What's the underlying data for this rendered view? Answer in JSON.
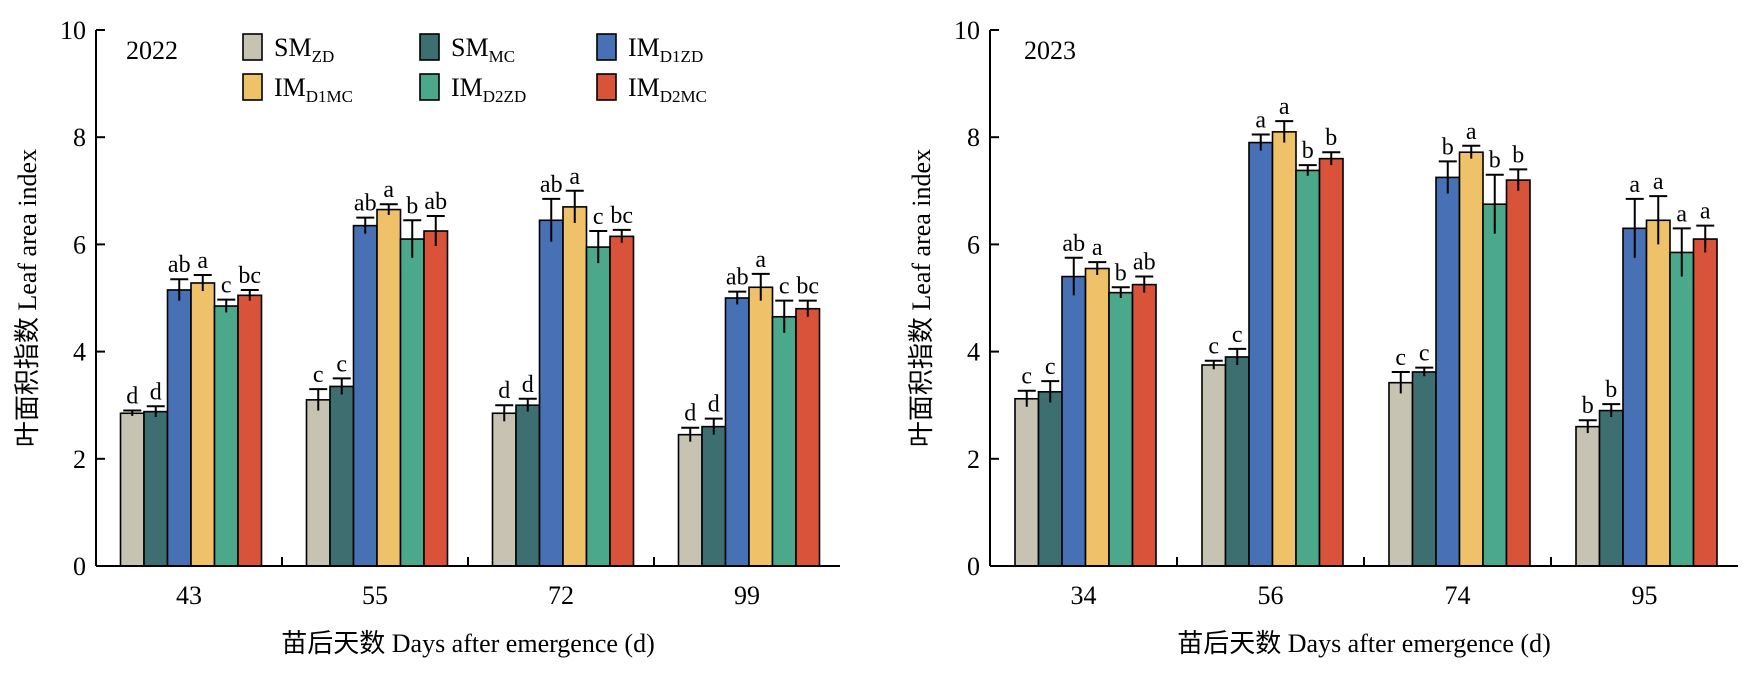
{
  "colors": {
    "SM_ZD": "#c6c3b2",
    "SM_MC": "#3d6f70",
    "IM_D1ZD": "#4870b4",
    "IM_D1MC": "#efc168",
    "IM_D2ZD": "#4ba88b",
    "IM_D2MC": "#d9523a"
  },
  "chart_data": [
    {
      "type": "bar",
      "panel_label": "2022",
      "xlabel": "苗后天数 Days after emergence (d)",
      "ylabel": "叶面积指数 Leaf area index",
      "ylim": [
        0,
        10
      ],
      "yticks": [
        "0",
        "2",
        "4",
        "6",
        "8",
        "10"
      ],
      "categories": [
        "43",
        "55",
        "72",
        "99"
      ],
      "legend": true,
      "series": [
        {
          "key": "SM_ZD",
          "name_base": "SM",
          "name_sub": "ZD",
          "values": [
            2.85,
            3.1,
            2.85,
            2.45
          ],
          "errors": [
            0.05,
            0.2,
            0.15,
            0.13
          ],
          "letters": [
            "d",
            "c",
            "d",
            "d"
          ]
        },
        {
          "key": "SM_MC",
          "name_base": "SM",
          "name_sub": "MC",
          "values": [
            2.88,
            3.35,
            3.0,
            2.6
          ],
          "errors": [
            0.1,
            0.15,
            0.12,
            0.15
          ],
          "letters": [
            "d",
            "c",
            "d",
            "d"
          ]
        },
        {
          "key": "IM_D1ZD",
          "name_base": "IM",
          "name_sub": "D1ZD",
          "values": [
            5.15,
            6.35,
            6.45,
            5.0
          ],
          "errors": [
            0.2,
            0.15,
            0.4,
            0.12
          ],
          "letters": [
            "ab",
            "ab",
            "ab",
            "ab"
          ]
        },
        {
          "key": "IM_D1MC",
          "name_base": "IM",
          "name_sub": "D1MC",
          "values": [
            5.28,
            6.65,
            6.7,
            5.2
          ],
          "errors": [
            0.15,
            0.1,
            0.3,
            0.25
          ],
          "letters": [
            "a",
            "a",
            "a",
            "a"
          ]
        },
        {
          "key": "IM_D2ZD",
          "name_base": "IM",
          "name_sub": "D2ZD",
          "values": [
            4.85,
            6.1,
            5.95,
            4.65
          ],
          "errors": [
            0.12,
            0.35,
            0.3,
            0.3
          ],
          "letters": [
            "c",
            "b",
            "c",
            "c"
          ]
        },
        {
          "key": "IM_D2MC",
          "name_base": "IM",
          "name_sub": "D2MC",
          "values": [
            5.05,
            6.25,
            6.15,
            4.8
          ],
          "errors": [
            0.1,
            0.28,
            0.12,
            0.15
          ],
          "letters": [
            "bc",
            "ab",
            "bc",
            "bc"
          ]
        }
      ]
    },
    {
      "type": "bar",
      "panel_label": "2023",
      "xlabel": "苗后天数 Days after emergence (d)",
      "ylabel": "叶面积指数 Leaf area index",
      "ylim": [
        0,
        10
      ],
      "yticks": [
        "0",
        "2",
        "4",
        "6",
        "8",
        "10"
      ],
      "categories": [
        "34",
        "56",
        "74",
        "95"
      ],
      "legend": false,
      "series": [
        {
          "key": "SM_ZD",
          "values": [
            3.12,
            3.75,
            3.42,
            2.6
          ],
          "errors": [
            0.15,
            0.08,
            0.2,
            0.12
          ],
          "letters": [
            "c",
            "c",
            "c",
            "b"
          ]
        },
        {
          "key": "SM_MC",
          "values": [
            3.25,
            3.9,
            3.62,
            2.9
          ],
          "errors": [
            0.2,
            0.15,
            0.08,
            0.12
          ],
          "letters": [
            "c",
            "c",
            "c",
            "b"
          ]
        },
        {
          "key": "IM_D1ZD",
          "values": [
            5.4,
            7.9,
            7.25,
            6.3
          ],
          "errors": [
            0.35,
            0.15,
            0.3,
            0.55
          ],
          "letters": [
            "ab",
            "a",
            "b",
            "a"
          ]
        },
        {
          "key": "IM_D1MC",
          "values": [
            5.55,
            8.1,
            7.72,
            6.45
          ],
          "errors": [
            0.12,
            0.2,
            0.12,
            0.45
          ],
          "letters": [
            "a",
            "a",
            "a",
            "a"
          ]
        },
        {
          "key": "IM_D2ZD",
          "values": [
            5.1,
            7.38,
            6.75,
            5.85
          ],
          "errors": [
            0.1,
            0.1,
            0.55,
            0.45
          ],
          "letters": [
            "b",
            "b",
            "b",
            "a"
          ]
        },
        {
          "key": "IM_D2MC",
          "values": [
            5.25,
            7.6,
            7.2,
            6.1
          ],
          "errors": [
            0.15,
            0.12,
            0.2,
            0.25
          ],
          "letters": [
            "ab",
            "b",
            "b",
            "a"
          ]
        }
      ]
    }
  ]
}
